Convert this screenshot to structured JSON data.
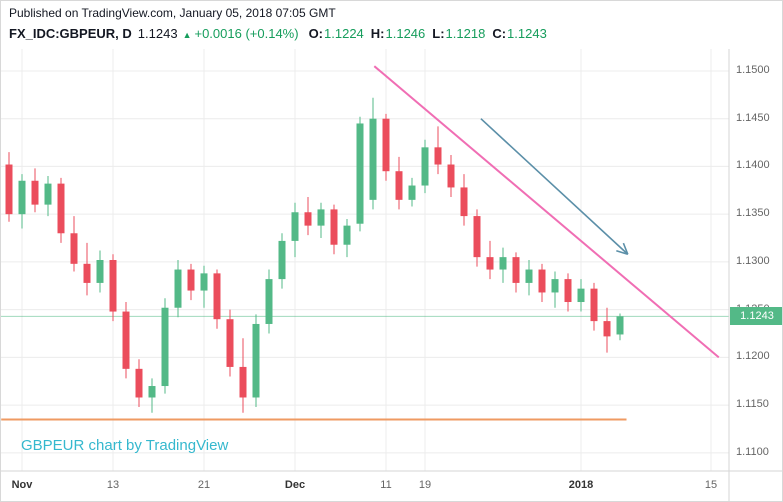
{
  "header": {
    "published_line": "Published on TradingView.com, January 05, 2018 07:05 GMT",
    "symbol_text": "FX_IDC:GBPEUR, D",
    "last_price": "1.1243",
    "change_arrow": "▲",
    "change_text": "+0.0016 (+0.14%)",
    "ohlc": [
      {
        "label": "O:",
        "value": "1.1224"
      },
      {
        "label": "H:",
        "value": "1.1246"
      },
      {
        "label": "L:",
        "value": "1.1218"
      },
      {
        "label": "C:",
        "value": "1.1243"
      }
    ]
  },
  "watermark": "GBPEUR chart by TradingView",
  "colors": {
    "up": "#53b987",
    "down": "#eb4d5c",
    "green_text": "#169d5c",
    "trend": "#f06eb4",
    "arrow": "#5b8fa8",
    "support": "#ef9a62",
    "watermark": "#35b8ce",
    "grid": "#ececec",
    "axis_text": "#656565",
    "header_text": "#131722",
    "separator": "#d6d6d6",
    "price_label_bg": "#53b987"
  },
  "chart_data": {
    "type": "candlestick",
    "symbol": "FX_IDC:GBPEUR",
    "interval": "D",
    "x_unit": "trading days, Nov 2017 to mid-Jan 2018",
    "ylim": [
      1.1081,
      1.1523
    ],
    "grid": true,
    "price_ticks": [
      {
        "label": "1.1500",
        "value": 1.15
      },
      {
        "label": "1.1450",
        "value": 1.145
      },
      {
        "label": "1.1400",
        "value": 1.14
      },
      {
        "label": "1.1350",
        "value": 1.135
      },
      {
        "label": "1.1300",
        "value": 1.13
      },
      {
        "label": "1.1250",
        "value": 1.125
      },
      {
        "label": "1.1200",
        "value": 1.12
      },
      {
        "label": "1.1150",
        "value": 1.115
      },
      {
        "label": "1.1100",
        "value": 1.11
      }
    ],
    "time_ticks": [
      {
        "label": "Nov",
        "index": 1,
        "emph": true
      },
      {
        "label": "13",
        "index": 8,
        "emph": false
      },
      {
        "label": "21",
        "index": 15,
        "emph": false
      },
      {
        "label": "Dec",
        "index": 22,
        "emph": true
      },
      {
        "label": "11",
        "index": 29,
        "emph": false
      },
      {
        "label": "19",
        "index": 32,
        "emph": false
      },
      {
        "label": "2018",
        "index": 44,
        "emph": true
      },
      {
        "label": "15",
        "index": 54,
        "emph": false
      }
    ],
    "candles": [
      [
        1.1402,
        1.1415,
        1.1342,
        1.135
      ],
      [
        1.135,
        1.1392,
        1.1335,
        1.1385
      ],
      [
        1.1385,
        1.1398,
        1.1352,
        1.136
      ],
      [
        1.136,
        1.139,
        1.1348,
        1.1382
      ],
      [
        1.1382,
        1.1388,
        1.132,
        1.133
      ],
      [
        1.133,
        1.1348,
        1.129,
        1.1298
      ],
      [
        1.1298,
        1.132,
        1.1265,
        1.1278
      ],
      [
        1.1278,
        1.1312,
        1.1268,
        1.1302
      ],
      [
        1.1302,
        1.1308,
        1.1238,
        1.1248
      ],
      [
        1.1248,
        1.1258,
        1.1178,
        1.1188
      ],
      [
        1.1188,
        1.1198,
        1.1148,
        1.1158
      ],
      [
        1.1158,
        1.1178,
        1.1142,
        1.117
      ],
      [
        1.117,
        1.1262,
        1.1162,
        1.1252
      ],
      [
        1.1252,
        1.1302,
        1.1242,
        1.1292
      ],
      [
        1.1292,
        1.1298,
        1.126,
        1.127
      ],
      [
        1.127,
        1.1296,
        1.1252,
        1.1288
      ],
      [
        1.1288,
        1.1292,
        1.123,
        1.124
      ],
      [
        1.124,
        1.125,
        1.118,
        1.119
      ],
      [
        1.119,
        1.122,
        1.1142,
        1.1158
      ],
      [
        1.1158,
        1.1245,
        1.1148,
        1.1235
      ],
      [
        1.1235,
        1.1292,
        1.1225,
        1.1282
      ],
      [
        1.1282,
        1.133,
        1.1272,
        1.1322
      ],
      [
        1.1322,
        1.1362,
        1.1305,
        1.1352
      ],
      [
        1.1352,
        1.1368,
        1.1328,
        1.1338
      ],
      [
        1.1338,
        1.1362,
        1.1325,
        1.1355
      ],
      [
        1.1355,
        1.136,
        1.1308,
        1.1318
      ],
      [
        1.1318,
        1.1345,
        1.1305,
        1.1338
      ],
      [
        1.134,
        1.1452,
        1.1332,
        1.1445
      ],
      [
        1.1365,
        1.1472,
        1.1355,
        1.145
      ],
      [
        1.145,
        1.1455,
        1.1385,
        1.1395
      ],
      [
        1.1395,
        1.141,
        1.1355,
        1.1365
      ],
      [
        1.1365,
        1.1388,
        1.1358,
        1.138
      ],
      [
        1.138,
        1.1428,
        1.1372,
        1.142
      ],
      [
        1.142,
        1.1442,
        1.1392,
        1.1402
      ],
      [
        1.1402,
        1.1412,
        1.1368,
        1.1378
      ],
      [
        1.1378,
        1.1392,
        1.1338,
        1.1348
      ],
      [
        1.1348,
        1.1355,
        1.1295,
        1.1305
      ],
      [
        1.1305,
        1.1322,
        1.1282,
        1.1292
      ],
      [
        1.1292,
        1.1315,
        1.1278,
        1.1305
      ],
      [
        1.1305,
        1.131,
        1.1268,
        1.1278
      ],
      [
        1.1278,
        1.1302,
        1.1265,
        1.1292
      ],
      [
        1.1292,
        1.1298,
        1.1258,
        1.1268
      ],
      [
        1.1268,
        1.129,
        1.1252,
        1.1282
      ],
      [
        1.1282,
        1.1288,
        1.1248,
        1.1258
      ],
      [
        1.1258,
        1.1282,
        1.1248,
        1.1272
      ],
      [
        1.1272,
        1.1278,
        1.1228,
        1.1238
      ],
      [
        1.1238,
        1.1252,
        1.1205,
        1.1222
      ],
      [
        1.1224,
        1.1246,
        1.1218,
        1.1243
      ]
    ],
    "current_price": 1.1243,
    "current_price_label": "1.1243",
    "annotations": {
      "trend_line": {
        "from_index": 28.1,
        "from_price": 1.1505,
        "to_index": 54.6,
        "to_price": 1.12
      },
      "arrow": {
        "from_index": 36.3,
        "from_price": 1.145,
        "to_index": 47.6,
        "to_price": 1.1308
      },
      "support_line": {
        "price": 1.1135,
        "from_index": -0.6,
        "to_index": 47.5
      }
    }
  }
}
